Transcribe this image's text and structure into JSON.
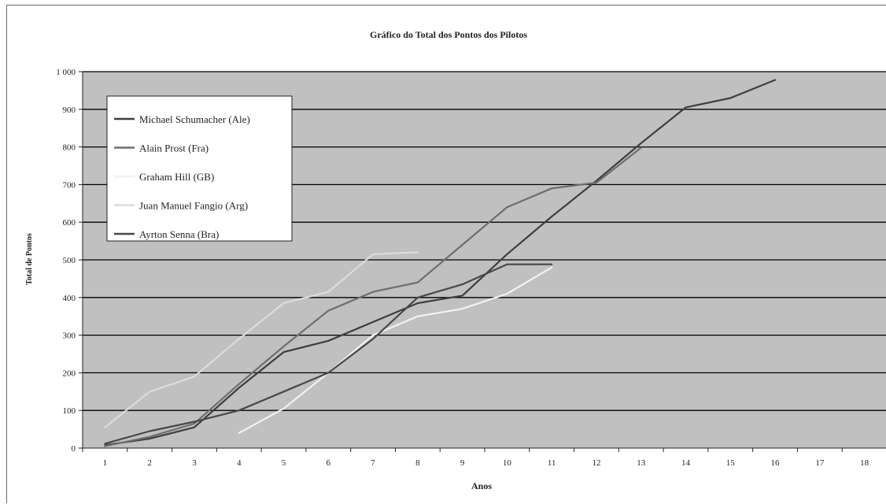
{
  "chart_data": {
    "type": "line",
    "title": "Gráfico do Total dos Pontos dos Pilotos",
    "xlabel": "Anos",
    "ylabel": "Total de Pontos",
    "x": [
      1,
      2,
      3,
      4,
      5,
      6,
      7,
      8,
      9,
      10,
      11,
      12,
      13,
      14,
      15,
      16,
      17,
      18
    ],
    "xlim": [
      1,
      18
    ],
    "ylim": [
      0,
      1000
    ],
    "yticks": [
      0,
      100,
      200,
      300,
      400,
      500,
      600,
      700,
      800,
      900,
      1000
    ],
    "ytick_labels": [
      "0",
      "100",
      "200",
      "300",
      "400",
      "500",
      "600",
      "700",
      "800",
      "900",
      "1 000"
    ],
    "grid": true,
    "legend_position": "top-left",
    "plot_background": "#c0c0c0",
    "series": [
      {
        "name": "Michael Schumacher (Ale)",
        "color": "#3e3e3e",
        "values": [
          8,
          25,
          55,
          160,
          255,
          285,
          335,
          385,
          405,
          515,
          615,
          710,
          810,
          905,
          930,
          978,
          null,
          null
        ]
      },
      {
        "name": "Alain Prost (Fra)",
        "color": "#6e6e6e",
        "values": [
          5,
          30,
          65,
          170,
          270,
          365,
          415,
          440,
          540,
          640,
          690,
          705,
          798,
          null,
          null,
          null,
          null,
          null
        ]
      },
      {
        "name": "Graham Hill (GB)",
        "color": "#f2f2f2",
        "values": [
          null,
          null,
          null,
          40,
          105,
          200,
          300,
          350,
          370,
          410,
          480,
          null,
          null,
          null,
          null,
          null,
          null,
          null
        ]
      },
      {
        "name": "Juan Manuel Fangio (Arg)",
        "color": "#dcdcdc",
        "values": [
          55,
          150,
          190,
          290,
          385,
          415,
          515,
          520,
          null,
          null,
          null,
          null,
          null,
          null,
          null,
          null,
          null,
          null
        ]
      },
      {
        "name": "Ayrton Senna (Bra)",
        "color": "#484848",
        "values": [
          12,
          45,
          70,
          100,
          150,
          200,
          290,
          400,
          435,
          488,
          488,
          null,
          null,
          null,
          null,
          null,
          null,
          null
        ]
      }
    ]
  }
}
